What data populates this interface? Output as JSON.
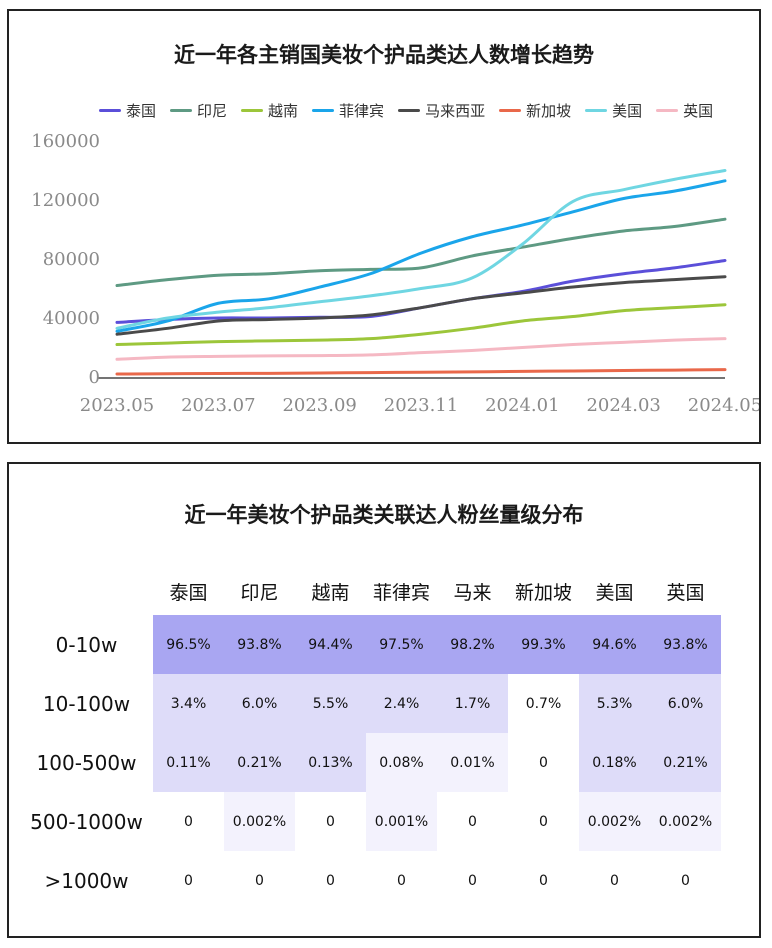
{
  "chart_panel": {
    "title": "近一年各主销国美妆个护品类达人数增长趋势"
  },
  "table_panel": {
    "title": "近一年美妆个护品类关联达人粉丝量级分布",
    "columns": [
      "泰国",
      "印尼",
      "越南",
      "菲律宾",
      "马来",
      "新加坡",
      "美国",
      "英国"
    ],
    "rows": [
      {
        "label": "0-10w",
        "values": [
          "96.5%",
          "93.8%",
          "94.4%",
          "97.5%",
          "98.2%",
          "99.3%",
          "94.6%",
          "93.8%"
        ],
        "levels": [
          1,
          1,
          1,
          1,
          1,
          1,
          1,
          1
        ]
      },
      {
        "label": "10-100w",
        "values": [
          "3.4%",
          "6.0%",
          "5.5%",
          "2.4%",
          "1.7%",
          "0.7%",
          "5.3%",
          "6.0%"
        ],
        "levels": [
          2,
          2,
          2,
          2,
          2,
          0,
          2,
          2
        ]
      },
      {
        "label": "100-500w",
        "values": [
          "0.11%",
          "0.21%",
          "0.13%",
          "0.08%",
          "0.01%",
          "0",
          "0.18%",
          "0.21%"
        ],
        "levels": [
          2,
          2,
          2,
          3,
          3,
          0,
          2,
          2
        ]
      },
      {
        "label": "500-1000w",
        "values": [
          "0",
          "0.002%",
          "0",
          "0.001%",
          "0",
          "0",
          "0.002%",
          "0.002%"
        ],
        "levels": [
          0,
          3,
          0,
          3,
          0,
          0,
          3,
          3
        ]
      },
      {
        "label": ">1000w",
        "values": [
          "0",
          "0",
          "0",
          "0",
          "0",
          "0",
          "0",
          "0"
        ],
        "levels": [
          0,
          0,
          0,
          0,
          0,
          0,
          0,
          0
        ]
      }
    ],
    "level_colors": [
      "#ffffff",
      "#a9a6f2",
      "#dedcf9",
      "#f3f2fd"
    ]
  },
  "chart_data": {
    "type": "line",
    "title": "近一年各主销国美妆个护品类达人数增长趋势",
    "xlabel": "",
    "ylabel": "",
    "x": [
      "2023.05",
      "2023.06",
      "2023.07",
      "2023.08",
      "2023.09",
      "2023.10",
      "2023.11",
      "2023.12",
      "2024.01",
      "2024.02",
      "2024.03",
      "2024.04",
      "2024.05"
    ],
    "x_tick_labels": [
      "2023.05",
      "2023.07",
      "2023.09",
      "2023.11",
      "2024.01",
      "2024.03",
      "2024.05"
    ],
    "ylim": [
      0,
      160000
    ],
    "y_ticks": [
      0,
      40000,
      80000,
      120000,
      160000
    ],
    "grid": false,
    "legend_position": "top",
    "series": [
      {
        "name": "泰国",
        "color": "#5b4fd9",
        "values": [
          37000,
          39000,
          40000,
          40000,
          40500,
          41000,
          47000,
          53000,
          58000,
          65000,
          70000,
          74000,
          79000
        ]
      },
      {
        "name": "印尼",
        "color": "#5e9a83",
        "values": [
          62000,
          66000,
          69000,
          70000,
          72000,
          73000,
          74000,
          82000,
          88000,
          94000,
          99000,
          102000,
          107000
        ]
      },
      {
        "name": "越南",
        "color": "#9cc63a",
        "values": [
          22000,
          23000,
          24000,
          24500,
          25000,
          26000,
          29000,
          33000,
          38000,
          41000,
          45000,
          47000,
          49000
        ]
      },
      {
        "name": "菲律宾",
        "color": "#1aa5ea",
        "values": [
          31000,
          38000,
          50000,
          53000,
          61000,
          70000,
          84000,
          95000,
          103000,
          112000,
          121000,
          126000,
          133000
        ]
      },
      {
        "name": "马来西亚",
        "color": "#4a4a4a",
        "values": [
          29000,
          33000,
          38000,
          39000,
          40000,
          42000,
          47000,
          53000,
          57000,
          61000,
          64000,
          66000,
          68000
        ]
      },
      {
        "name": "新加坡",
        "color": "#e9684a",
        "values": [
          2000,
          2200,
          2400,
          2500,
          2700,
          3000,
          3200,
          3500,
          3800,
          4100,
          4400,
          4700,
          5000
        ]
      },
      {
        "name": "美国",
        "color": "#6fd6e2",
        "values": [
          33000,
          40000,
          44000,
          47000,
          51000,
          55000,
          60000,
          67000,
          90000,
          119000,
          127000,
          134000,
          140000
        ]
      },
      {
        "name": "英国",
        "color": "#f5b8c3",
        "values": [
          12000,
          13500,
          14000,
          14300,
          14500,
          15000,
          16500,
          18000,
          20000,
          22000,
          23500,
          25000,
          26000
        ]
      }
    ]
  }
}
